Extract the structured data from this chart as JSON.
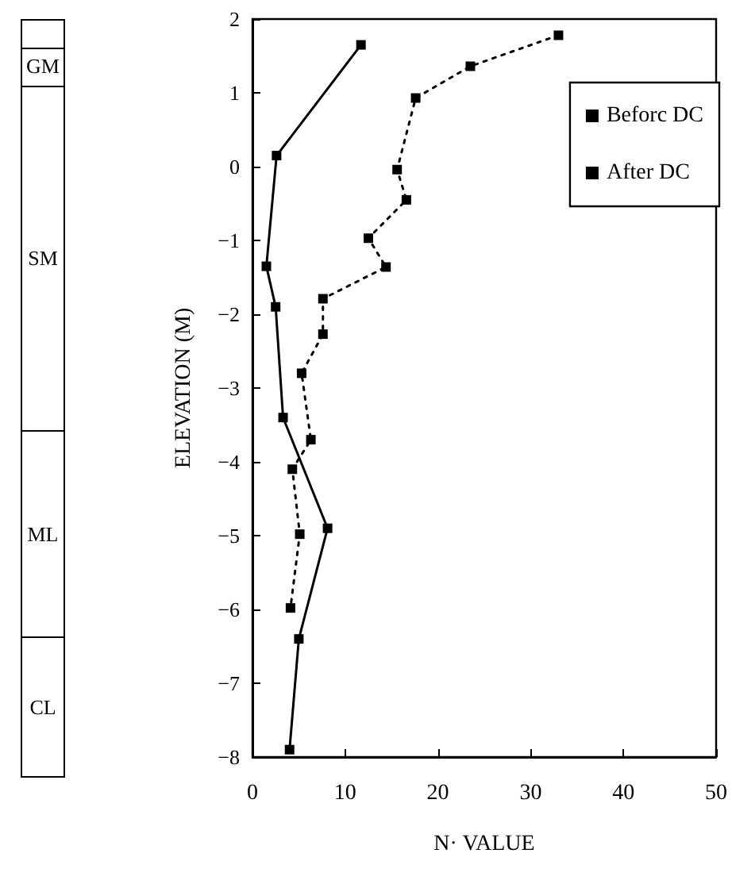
{
  "chart_data": {
    "type": "line",
    "xlabel": "N· VALUE",
    "ylabel": "ELEVATION (M)",
    "xlim": [
      0,
      50
    ],
    "xticks": [
      0,
      10,
      20,
      30,
      40,
      50
    ],
    "ylim": [
      -8,
      2
    ],
    "yticks": [
      -8,
      -7,
      -6,
      -5,
      -4,
      -3,
      -2,
      -1,
      0,
      1,
      2
    ],
    "grid": false,
    "legend": "top right",
    "marker": "square",
    "annotations": [
      "GM",
      "SM",
      "ML",
      "CL"
    ],
    "series": [
      {
        "name": "Beforc DC",
        "color": "#000000",
        "line_style": "solid",
        "x": [
          11.7,
          2.6,
          1.5,
          2.5,
          3.3,
          8.1,
          5.0,
          4.0
        ],
        "values": [
          1.65,
          0.15,
          -1.35,
          -1.9,
          -3.4,
          -4.9,
          -6.4,
          -7.9
        ]
      },
      {
        "name": "After DC",
        "color": "#000000",
        "line_style": "dotted",
        "x": [
          33,
          23.5,
          17.6,
          15.6,
          16.6,
          12.5,
          14.4,
          7.6,
          7.6,
          5.3,
          6.3,
          4.3,
          5.1,
          4.1
        ],
        "values": [
          1.78,
          1.36,
          0.93,
          -0.04,
          -0.45,
          -0.97,
          -1.36,
          -1.79,
          -2.27,
          -2.8,
          -3.7,
          -4.1,
          -4.98,
          -5.98
        ]
      }
    ]
  }
}
